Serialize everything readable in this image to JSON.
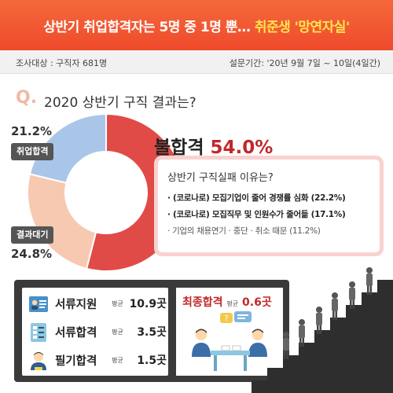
{
  "banner": {
    "title": "상반기 취업합격자는 5명 중 1명 뿐…",
    "subtitle": "취준생 '망연자실'"
  },
  "survey": {
    "target": "조사대상 :  구직자 681명",
    "period": "설문기간: '20년 9월 7일 ~ 10일(4일간)"
  },
  "question": {
    "mark": "Q.",
    "text": "2020 상반기 구직 결과는?"
  },
  "chart_data": {
    "type": "pie",
    "title": "2020 상반기 구직 결과는?",
    "categories": [
      "불합격",
      "취업합격",
      "결과대기"
    ],
    "values": [
      54.0,
      21.2,
      24.8
    ],
    "unit": "%",
    "colors": [
      "#e04b48",
      "#a9c6e8",
      "#f7c9b0"
    ],
    "labels": {
      "fail_text": "불합격",
      "fail_pct": "54.0%",
      "pass_pct": "21.2%",
      "pass_tag": "취업합격",
      "wait_pct": "24.8%",
      "wait_tag": "결과대기"
    }
  },
  "reasons": {
    "title": "상반기 구직실패 이유는?",
    "items": [
      "· (코로나로) 모집기업이 줄어 경쟁률 심화 (22.2%)",
      "· (코로나로) 모집직무 및 인원수가 줄어듦 (17.1%)",
      "· 기업의 채용연기 · 중단 · 취소 때문 (11.2%)"
    ]
  },
  "stats": {
    "avg_label": "평균",
    "rows": [
      {
        "name": "서류지원",
        "value": "10.9곳",
        "icon": "resume-icon"
      },
      {
        "name": "서류합격",
        "value": "3.5곳",
        "icon": "checklist-icon"
      },
      {
        "name": "필기합격",
        "value": "1.5곳",
        "icon": "person-icon"
      }
    ],
    "final": {
      "name": "최종합격",
      "avg_label": "평균",
      "value": "0.6곳"
    }
  }
}
